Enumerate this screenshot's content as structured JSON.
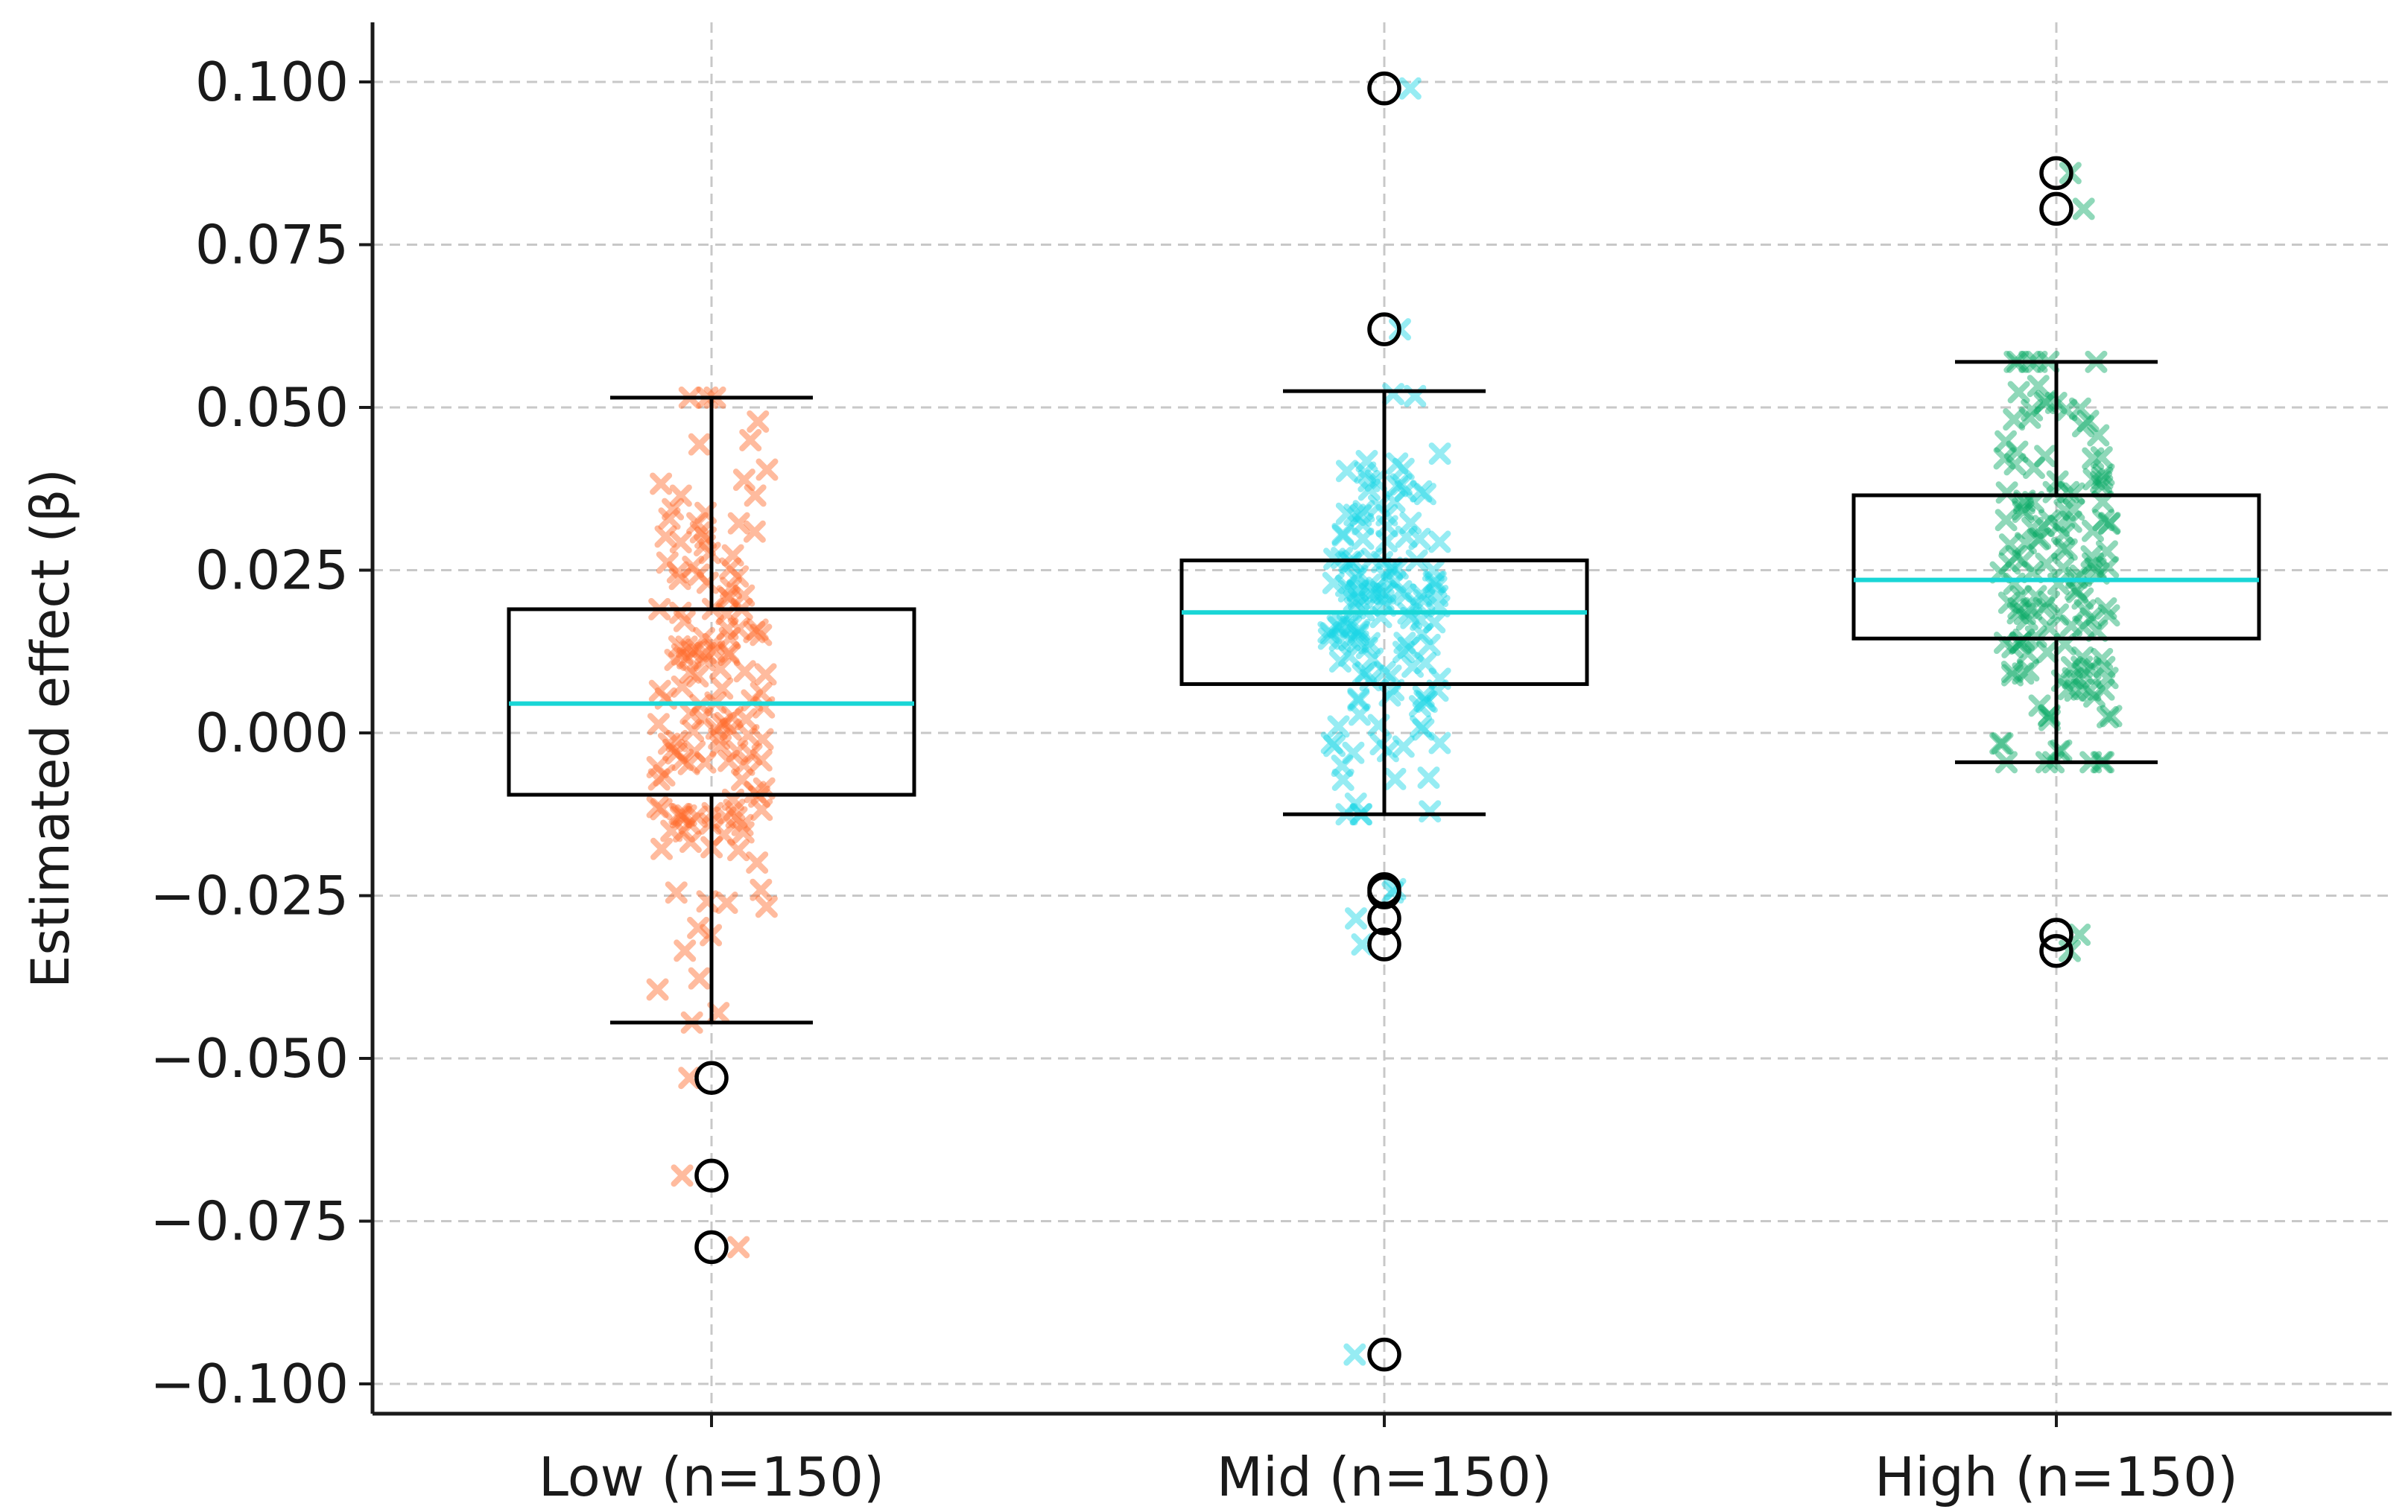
{
  "chart_data": {
    "type": "box",
    "title": "",
    "xlabel": "",
    "ylabel": "Estimated effect (β)",
    "ylim": [
      -0.104,
      0.109
    ],
    "yticks": [
      0.1,
      0.075,
      0.05,
      0.025,
      0.0,
      -0.025,
      -0.05,
      -0.075,
      -0.1
    ],
    "ytick_labels": [
      "0.100",
      "0.075",
      "0.050",
      "0.025",
      "0.000",
      "−0.025",
      "−0.050",
      "−0.075",
      "−0.100"
    ],
    "grid": true,
    "categories": [
      "Low (n=150)",
      "Mid (n=150)",
      "High (n=150)"
    ],
    "median_color": "#19d6d6",
    "groups": [
      {
        "label": "Low (n=150)",
        "n": 150,
        "jitter_color": "#ff6a2b",
        "median": 0.0045,
        "q1": -0.0095,
        "q3": 0.019,
        "whisker_low": -0.0445,
        "whisker_high": 0.0515,
        "outliers": [
          -0.053,
          -0.068,
          -0.079
        ]
      },
      {
        "label": "Mid (n=150)",
        "n": 150,
        "jitter_color": "#19d6e6",
        "median": 0.0185,
        "q1": 0.0075,
        "q3": 0.0265,
        "whisker_low": -0.0125,
        "whisker_high": 0.0525,
        "outliers": [
          0.099,
          0.062,
          -0.024,
          -0.0245,
          -0.0285,
          -0.0325,
          -0.0955
        ]
      },
      {
        "label": "High (n=150)",
        "n": 150,
        "jitter_color": "#0aaa66",
        "median": 0.0235,
        "q1": 0.0145,
        "q3": 0.0365,
        "whisker_low": -0.0045,
        "whisker_high": 0.057,
        "outliers": [
          0.086,
          0.0805,
          -0.031,
          -0.0335
        ]
      }
    ]
  }
}
